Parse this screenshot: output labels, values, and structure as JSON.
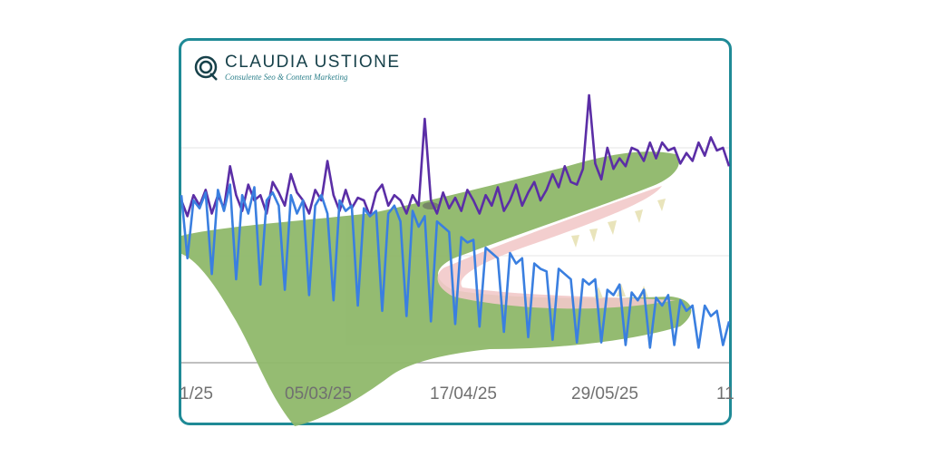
{
  "brand": {
    "name": "CLAUDIA USTIONE",
    "tagline": "Consulente Seo & Content Marketing"
  },
  "colors": {
    "frame": "#1f8a96",
    "series_purple": "#5b2ea6",
    "series_blue": "#3a7fe0",
    "crocodile_body": "#8fb86a",
    "crocodile_mouth": "#f2c7c7",
    "teeth": "#e8e3b8"
  },
  "chart_data": {
    "type": "line",
    "x_tick_labels": [
      "1/25",
      "05/03/25",
      "17/04/25",
      "29/05/25",
      "11"
    ],
    "grid": true,
    "legend": "none",
    "series": [
      {
        "color": "#5b2ea6",
        "values": [
          0.6,
          0.54,
          0.62,
          0.58,
          0.64,
          0.55,
          0.62,
          0.57,
          0.73,
          0.62,
          0.56,
          0.66,
          0.6,
          0.62,
          0.55,
          0.67,
          0.63,
          0.58,
          0.7,
          0.63,
          0.6,
          0.55,
          0.64,
          0.6,
          0.75,
          0.62,
          0.56,
          0.64,
          0.57,
          0.61,
          0.6,
          0.54,
          0.63,
          0.66,
          0.58,
          0.62,
          0.6,
          0.55,
          0.62,
          0.58,
          0.91,
          0.6,
          0.55,
          0.63,
          0.57,
          0.61,
          0.56,
          0.64,
          0.6,
          0.55,
          0.62,
          0.58,
          0.65,
          0.56,
          0.6,
          0.66,
          0.58,
          0.63,
          0.67,
          0.6,
          0.64,
          0.7,
          0.65,
          0.73,
          0.67,
          0.66,
          0.72,
          1.0,
          0.74,
          0.68,
          0.8,
          0.72,
          0.76,
          0.73,
          0.8,
          0.79,
          0.75,
          0.82,
          0.76,
          0.82,
          0.79,
          0.8,
          0.74,
          0.78,
          0.75,
          0.82,
          0.77,
          0.84,
          0.79,
          0.8,
          0.73
        ]
      },
      {
        "color": "#3a7fe0",
        "values": [
          0.62,
          0.38,
          0.6,
          0.57,
          0.63,
          0.32,
          0.64,
          0.56,
          0.66,
          0.3,
          0.62,
          0.55,
          0.65,
          0.28,
          0.6,
          0.63,
          0.58,
          0.26,
          0.62,
          0.55,
          0.6,
          0.24,
          0.58,
          0.62,
          0.55,
          0.22,
          0.6,
          0.56,
          0.58,
          0.2,
          0.57,
          0.54,
          0.56,
          0.18,
          0.55,
          0.58,
          0.52,
          0.16,
          0.56,
          0.5,
          0.54,
          0.14,
          0.52,
          0.5,
          0.48,
          0.13,
          0.46,
          0.44,
          0.45,
          0.12,
          0.42,
          0.4,
          0.38,
          0.1,
          0.4,
          0.36,
          0.38,
          0.08,
          0.36,
          0.34,
          0.33,
          0.07,
          0.34,
          0.32,
          0.3,
          0.06,
          0.3,
          0.28,
          0.3,
          0.06,
          0.26,
          0.24,
          0.28,
          0.05,
          0.25,
          0.22,
          0.26,
          0.04,
          0.23,
          0.2,
          0.24,
          0.05,
          0.22,
          0.18,
          0.2,
          0.04,
          0.2,
          0.16,
          0.18,
          0.05,
          0.14
        ]
      }
    ]
  }
}
